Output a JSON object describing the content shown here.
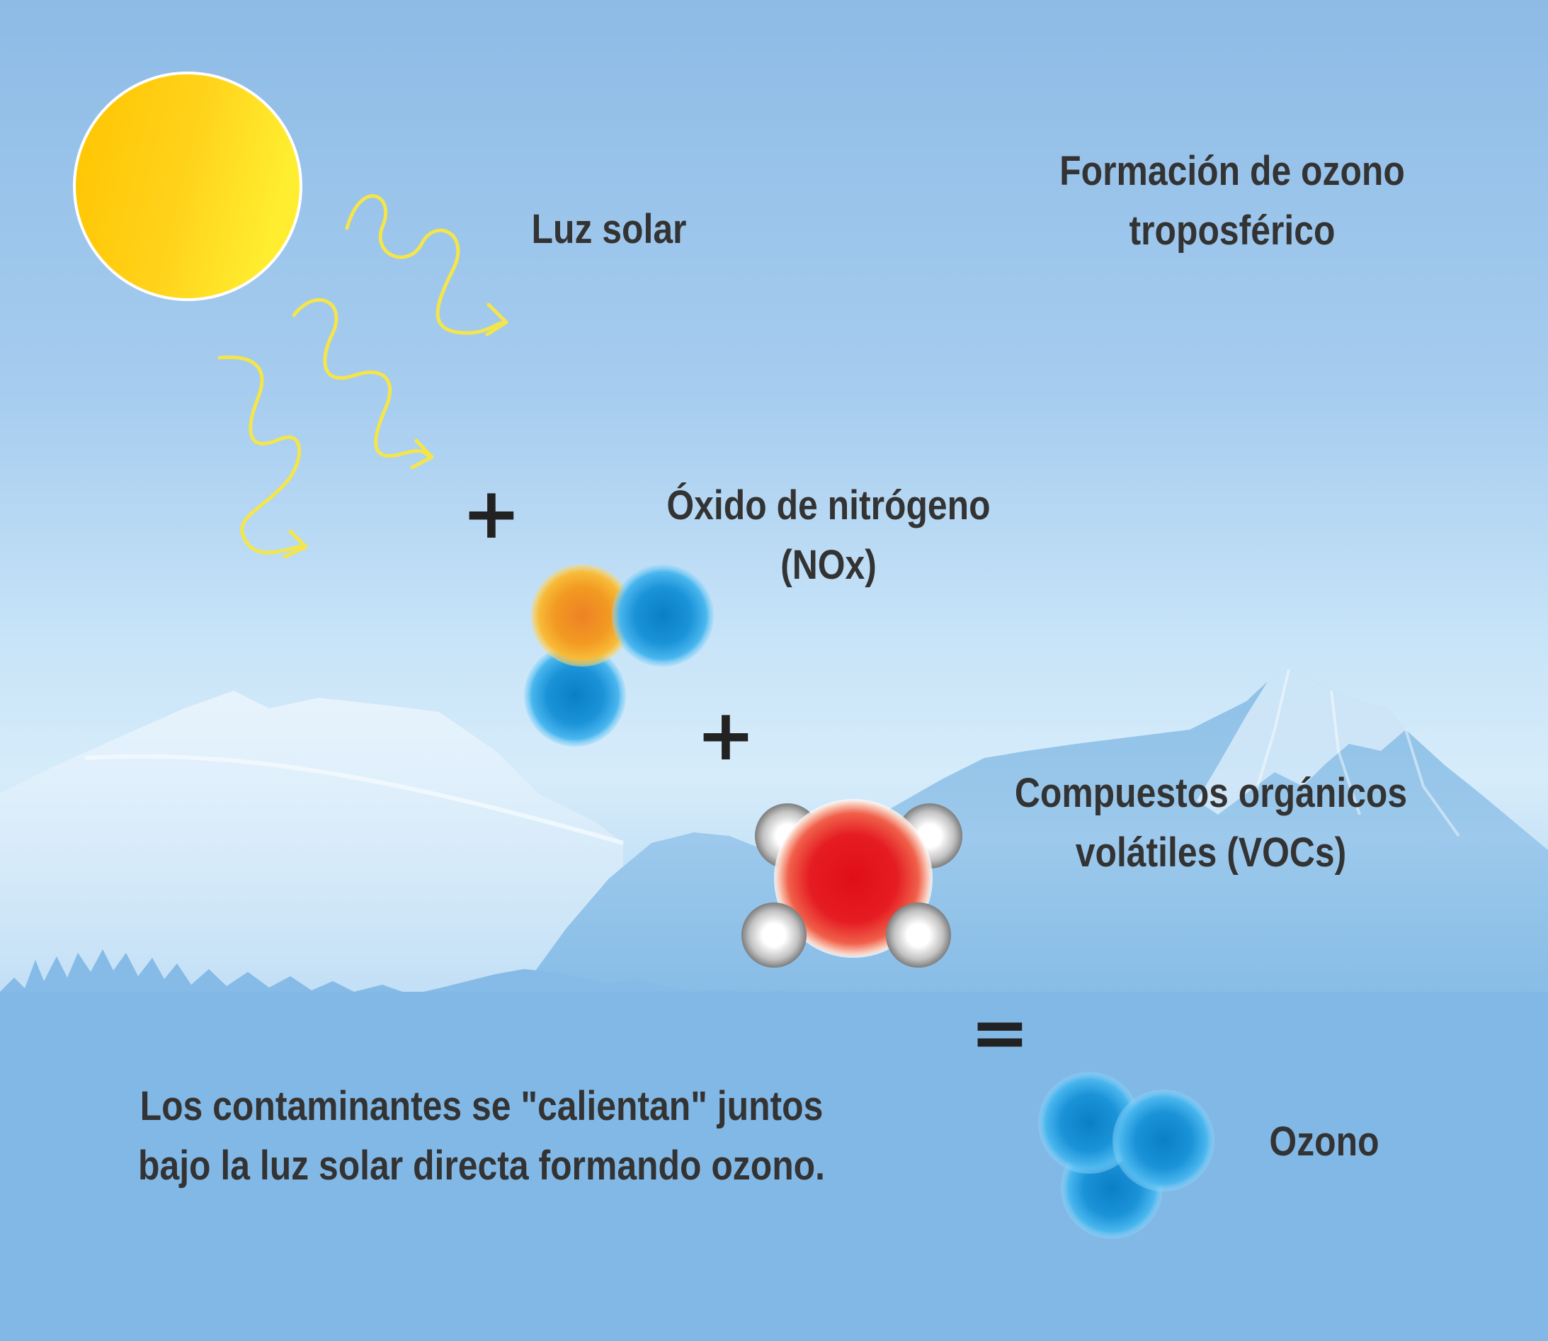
{
  "title": {
    "line1": "Formación de ozono",
    "line2": "troposférico"
  },
  "sunlight": {
    "label": "Luz solar",
    "icon": "sun-icon"
  },
  "operators": {
    "plus1": "+",
    "plus2": "+",
    "equals": "="
  },
  "nox": {
    "line1": "Óxido de nitrógeno",
    "line2": "(NOx)"
  },
  "vocs": {
    "line1": "Compuestos orgánicos",
    "line2": "volátiles (VOCs)"
  },
  "ozone": {
    "label": "Ozono"
  },
  "caption": {
    "line1": "Los contaminantes se \"calientan\" juntos",
    "line2": "bajo la luz solar directa formando ozono."
  },
  "colors": {
    "text": "#333333",
    "sun": "#ffc81a",
    "light_waves": "#f4e64a",
    "oxygen_blue": "#0a86cc",
    "nitrogen_orange": "#f29a22",
    "carbon_red": "#e3141c",
    "hydrogen_grey": "#8f8f8f",
    "mountain": "#7fb6e0"
  }
}
